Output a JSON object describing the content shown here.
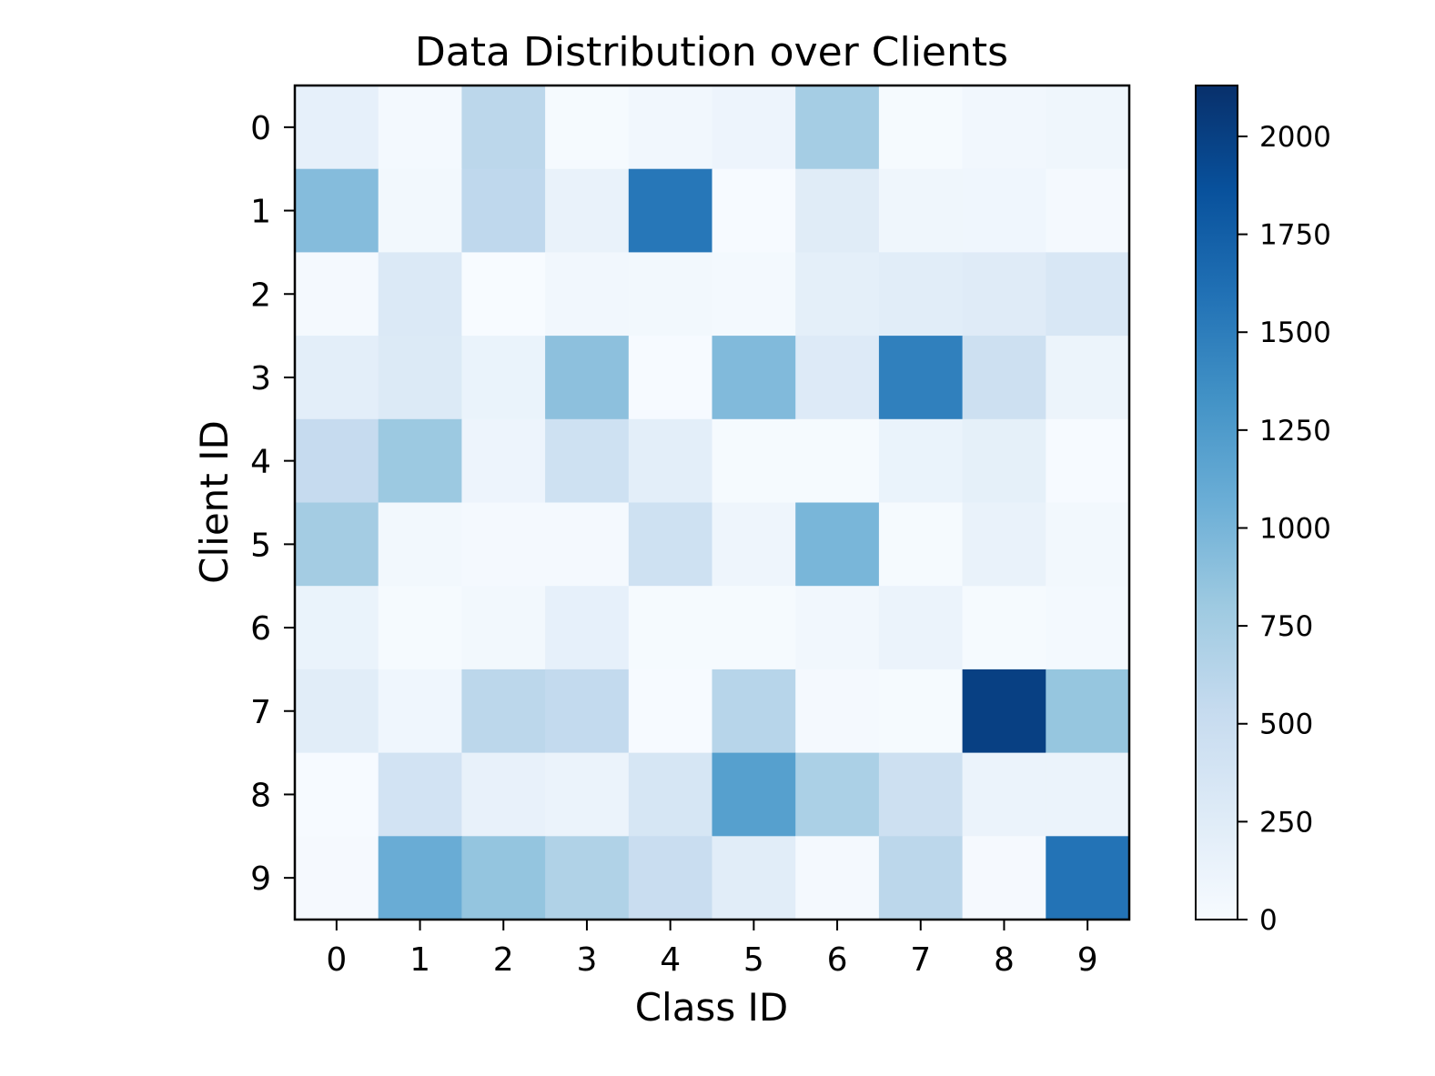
{
  "chart_data": {
    "type": "heatmap",
    "title": "Data Distribution over Clients",
    "xlabel": "Class ID",
    "ylabel": "Client ID",
    "x_categories": [
      "0",
      "1",
      "2",
      "3",
      "4",
      "5",
      "6",
      "7",
      "8",
      "9"
    ],
    "y_categories": [
      "0",
      "1",
      "2",
      "3",
      "4",
      "5",
      "6",
      "7",
      "8",
      "9"
    ],
    "values": [
      [
        180,
        40,
        600,
        20,
        60,
        110,
        750,
        20,
        60,
        90
      ],
      [
        930,
        50,
        580,
        150,
        1550,
        15,
        250,
        90,
        80,
        30
      ],
      [
        30,
        300,
        5,
        60,
        50,
        40,
        200,
        230,
        260,
        330
      ],
      [
        210,
        290,
        140,
        890,
        10,
        950,
        280,
        1480,
        450,
        120
      ],
      [
        530,
        810,
        110,
        440,
        210,
        20,
        20,
        140,
        190,
        15
      ],
      [
        760,
        50,
        30,
        30,
        440,
        100,
        990,
        20,
        150,
        50
      ],
      [
        140,
        20,
        50,
        180,
        20,
        20,
        60,
        130,
        20,
        40
      ],
      [
        230,
        80,
        600,
        550,
        15,
        630,
        30,
        20,
        2000,
        840
      ],
      [
        15,
        400,
        160,
        130,
        350,
        1200,
        710,
        450,
        130,
        130
      ],
      [
        25,
        1080,
        850,
        680,
        500,
        230,
        30,
        600,
        25,
        1580
      ]
    ],
    "colorbar": {
      "min": 0,
      "max": 2130,
      "ticks": [
        0,
        250,
        500,
        750,
        1000,
        1250,
        1500,
        1750,
        2000
      ],
      "colormap": "Blues"
    }
  }
}
